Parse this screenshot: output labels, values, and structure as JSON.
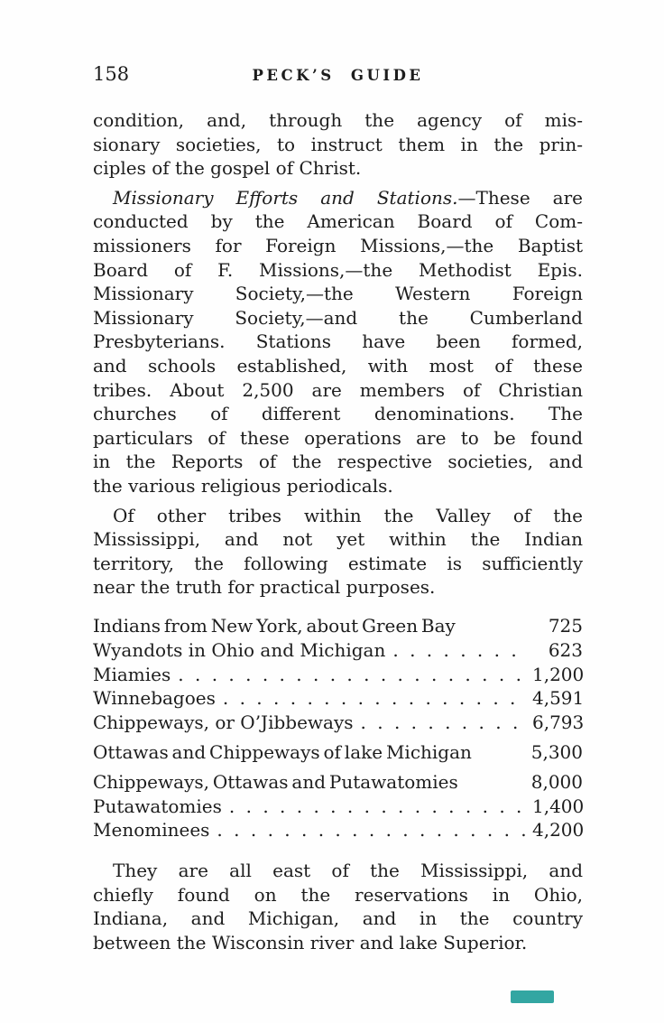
{
  "page": {
    "header": {
      "page_number": "158",
      "title": "PECK’S GUIDE"
    },
    "sections": [
      {
        "type": "paragraph",
        "indent": false,
        "lines": [
          "condition, and, through the agency of mis-",
          "sionary societies, to instruct them in the prin-",
          "ciples of the gospel of Christ."
        ]
      },
      {
        "type": "paragraph",
        "indent": true,
        "lines": [
          {
            "italic": "Missionary Efforts and Stations.",
            "roman": "—These are"
          },
          "conducted by the American Board of Com-",
          "missioners for Foreign Missions,—the Baptist",
          "Board of F. Missions,—the Methodist Epis.",
          "Missionary Society,—the Western Foreign",
          "Missionary Society,—and the Cumberland",
          "Presbyterians.  Stations have been formed,",
          "and schools established, with most of these",
          "tribes.  About 2,500 are members of Christian",
          "churches of different denominations.  The",
          "particulars of these operations are to be found",
          "in the Reports of the respective societies, and",
          "the various religious periodicals."
        ]
      },
      {
        "type": "paragraph",
        "indent": true,
        "lines": [
          "Of other tribes within the Valley of the",
          "Mississippi, and not yet within the Indian",
          "territory, the following estimate is sufficiently",
          "near the truth for practical purposes."
        ]
      },
      {
        "type": "table",
        "rows": [
          {
            "label": "Indians from New York, about Green Bay",
            "dots": false,
            "value": "725"
          },
          {
            "label": "Wyandots in Ohio and Michigan",
            "dots": true,
            "value": "623"
          },
          {
            "label": "Miamies",
            "dots": true,
            "value": "1,200"
          },
          {
            "label": "Winnebagoes",
            "dots": true,
            "value": "4,591"
          },
          {
            "label": "Chippeways, or O’Jibbeways",
            "dots": true,
            "value": "6,793"
          },
          {
            "label": "Ottawas and Chippeways of lake Michigan",
            "dots": false,
            "value": "5,300"
          },
          {
            "label": "Chippeways, Ottawas and Putawatomies",
            "dots": false,
            "value": "8,000"
          },
          {
            "label": "Putawatomies",
            "dots": true,
            "value": "1,400"
          },
          {
            "label": "Menominees",
            "dots": true,
            "value": "4,200"
          }
        ]
      },
      {
        "type": "paragraph",
        "indent": true,
        "lines": [
          "They are all east of the Mississippi, and",
          "chiefly found on the reservations in Ohio,",
          "Indiana, and Michigan, and in the country",
          "between the Wisconsin river and lake Superior."
        ]
      }
    ],
    "watermark": {
      "color": "#33a6a2"
    }
  }
}
